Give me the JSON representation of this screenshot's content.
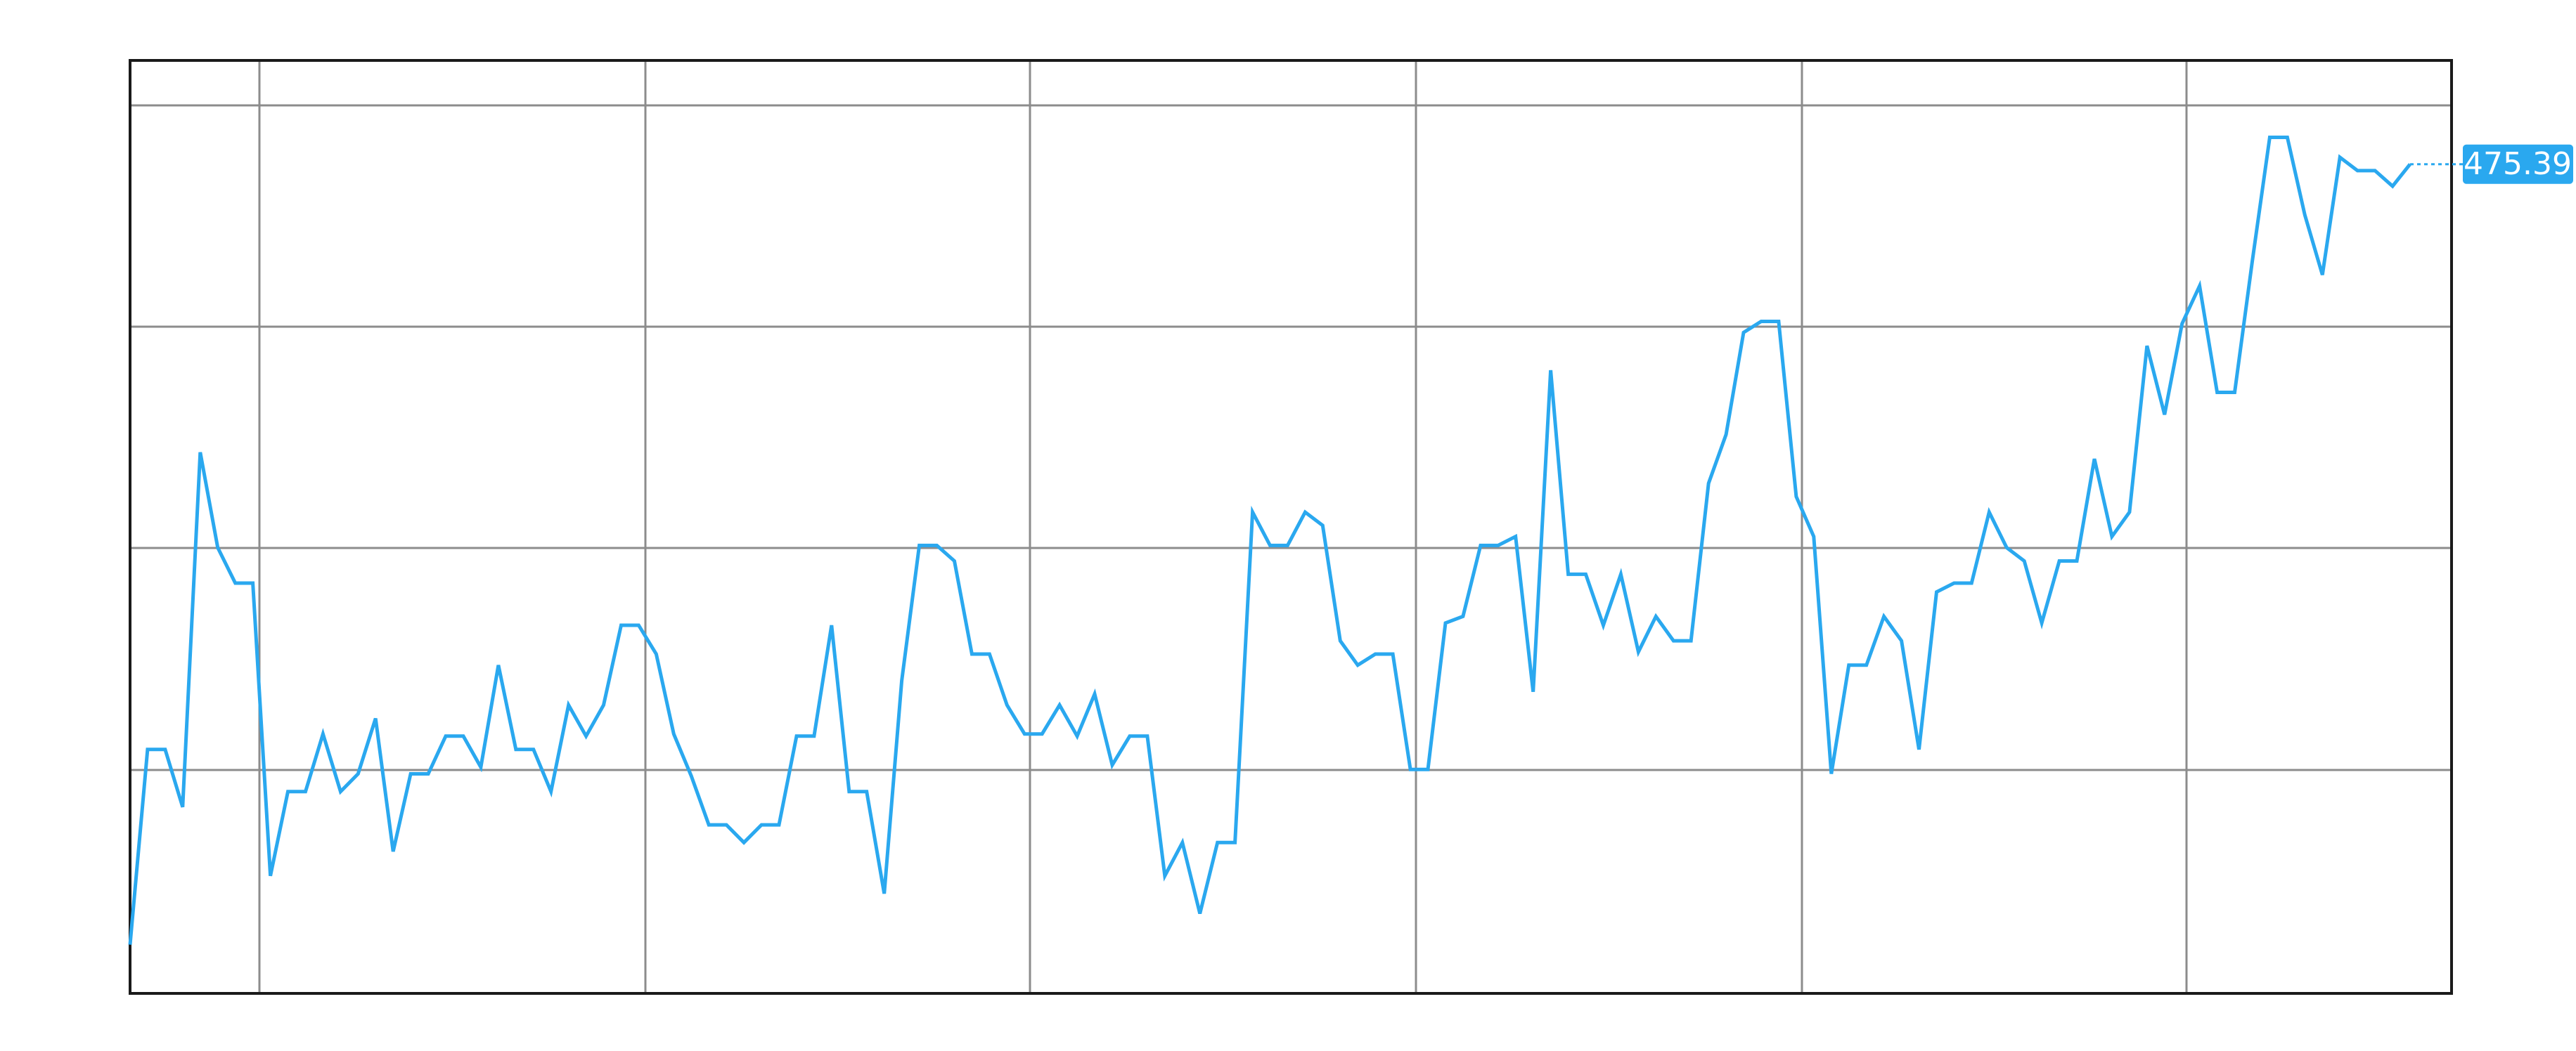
{
  "chart_data": {
    "type": "line",
    "color": "#2aa8ef",
    "ylim": [
      438,
      480.07
    ],
    "values": [
      440.2,
      449.0,
      449.0,
      446.4,
      462.4,
      458.1,
      456.5,
      456.5,
      443.3,
      447.1,
      447.1,
      449.7,
      447.1,
      447.9,
      450.4,
      444.4,
      447.9,
      447.9,
      449.6,
      449.6,
      448.2,
      452.8,
      449.0,
      449.0,
      447.1,
      451.0,
      449.6,
      451.0,
      454.6,
      454.6,
      453.3,
      449.7,
      447.8,
      445.6,
      445.6,
      444.8,
      445.6,
      445.6,
      449.6,
      449.6,
      454.6,
      447.1,
      447.1,
      442.5,
      452.1,
      458.2,
      458.2,
      457.5,
      453.3,
      453.3,
      451.0,
      449.7,
      449.7,
      451.0,
      449.6,
      451.5,
      448.3,
      449.6,
      449.6,
      443.3,
      444.8,
      441.6,
      444.8,
      444.8,
      459.7,
      458.2,
      458.2,
      459.7,
      459.1,
      453.9,
      452.8,
      453.3,
      453.3,
      448.1,
      448.1,
      454.7,
      455.0,
      458.2,
      458.2,
      458.6,
      451.6,
      466.1,
      456.9,
      456.9,
      454.6,
      456.9,
      453.4,
      455.0,
      453.9,
      453.9,
      461.0,
      463.2,
      467.8,
      468.3,
      468.3,
      460.4,
      458.6,
      447.9,
      452.8,
      452.8,
      455.0,
      453.9,
      449.0,
      456.1,
      456.5,
      456.5,
      459.7,
      458.1,
      457.5,
      454.7,
      457.5,
      457.5,
      462.1,
      458.6,
      459.7,
      467.2,
      464.1,
      468.2,
      469.9,
      465.1,
      465.1,
      471.0,
      476.6,
      476.6,
      473.1,
      470.4,
      475.7,
      475.1,
      475.1,
      474.4,
      475.39
    ]
  }
}
